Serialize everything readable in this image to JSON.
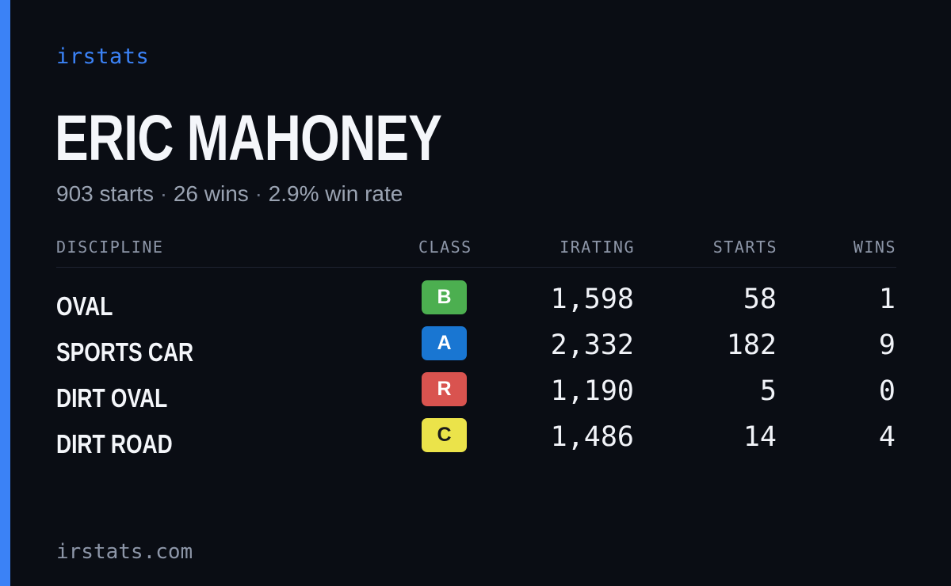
{
  "brand": "irstats",
  "driver": {
    "name": "ERIC MAHONEY",
    "starts_text": "903 starts",
    "wins_text": "26 wins",
    "win_rate_text": "2.9% win rate",
    "separator": "·"
  },
  "table": {
    "headers": {
      "discipline": "DISCIPLINE",
      "class": "CLASS",
      "irating": "IRATING",
      "starts": "STARTS",
      "wins": "WINS"
    },
    "rows": [
      {
        "discipline": "OVAL",
        "class": "B",
        "class_color": "#4caf50",
        "class_text_color": "#ffffff",
        "irating": "1,598",
        "starts": "58",
        "wins": "1"
      },
      {
        "discipline": "SPORTS CAR",
        "class": "A",
        "class_color": "#1976d2",
        "class_text_color": "#ffffff",
        "irating": "2,332",
        "starts": "182",
        "wins": "9"
      },
      {
        "discipline": "DIRT OVAL",
        "class": "R",
        "class_color": "#d9534f",
        "class_text_color": "#ffffff",
        "irating": "1,190",
        "starts": "5",
        "wins": "0"
      },
      {
        "discipline": "DIRT ROAD",
        "class": "C",
        "class_color": "#ebe34a",
        "class_text_color": "#1a1a1a",
        "irating": "1,486",
        "starts": "14",
        "wins": "4"
      }
    ]
  },
  "footer": "irstats.com",
  "colors": {
    "accent": "#3b82f6",
    "background": "#0a0d14",
    "muted": "#9aa3b2"
  }
}
